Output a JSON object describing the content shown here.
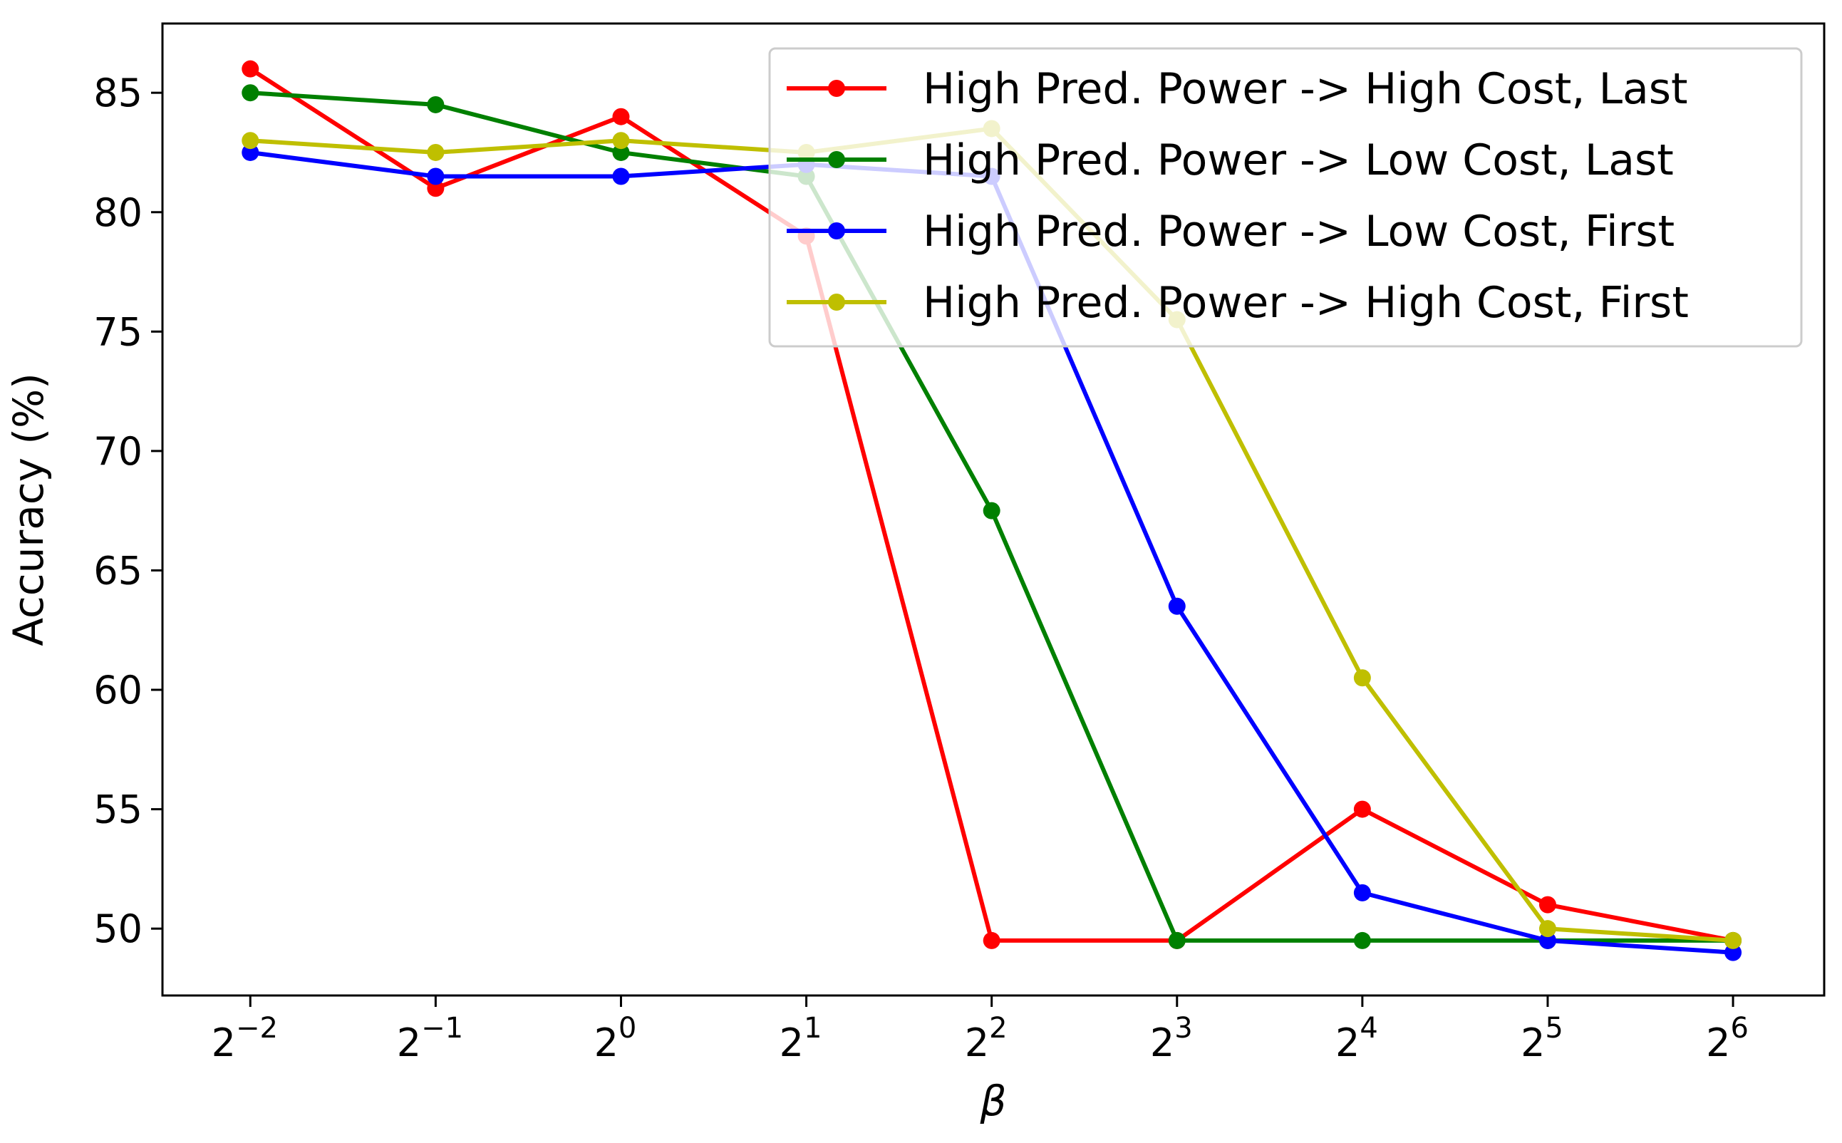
{
  "chart_data": {
    "type": "line",
    "title": "",
    "xlabel": "β",
    "ylabel": "Accuracy (%)",
    "x_scale": "log2",
    "x": [
      0.25,
      0.5,
      1,
      2,
      4,
      8,
      16,
      32,
      64
    ],
    "x_tick_labels": [
      {
        "base": "2",
        "exp": "−2"
      },
      {
        "base": "2",
        "exp": "−1"
      },
      {
        "base": "2",
        "exp": "0"
      },
      {
        "base": "2",
        "exp": "1"
      },
      {
        "base": "2",
        "exp": "2"
      },
      {
        "base": "2",
        "exp": "3"
      },
      {
        "base": "2",
        "exp": "4"
      },
      {
        "base": "2",
        "exp": "5"
      },
      {
        "base": "2",
        "exp": "6"
      }
    ],
    "xlim": [
      0.18,
      90
    ],
    "ylim": [
      47.2,
      87.9
    ],
    "y_ticks": [
      50,
      55,
      60,
      65,
      70,
      75,
      80,
      85
    ],
    "y_tick_labels": [
      "50",
      "55",
      "60",
      "65",
      "70",
      "75",
      "80",
      "85"
    ],
    "grid": false,
    "legend_position": "top-right",
    "series": [
      {
        "name": "High Pred. Power -> High Cost, Last",
        "color": "#ff0000",
        "values": [
          86.0,
          81.0,
          84.0,
          79.0,
          49.5,
          49.5,
          55.0,
          51.0,
          49.5
        ]
      },
      {
        "name": "High Pred. Power -> Low Cost, Last",
        "color": "#008000",
        "values": [
          85.0,
          84.5,
          82.5,
          81.5,
          67.5,
          49.5,
          49.5,
          49.5,
          49.5
        ]
      },
      {
        "name": "High Pred. Power -> Low Cost, First",
        "color": "#0000ff",
        "values": [
          82.5,
          81.5,
          81.5,
          82.0,
          81.5,
          63.5,
          51.5,
          49.5,
          49.0
        ]
      },
      {
        "name": "High Pred. Power -> High Cost, First",
        "color": "#bfbf00",
        "values": [
          83.0,
          82.5,
          83.0,
          82.5,
          83.5,
          75.5,
          60.5,
          50.0,
          49.5
        ]
      }
    ]
  }
}
